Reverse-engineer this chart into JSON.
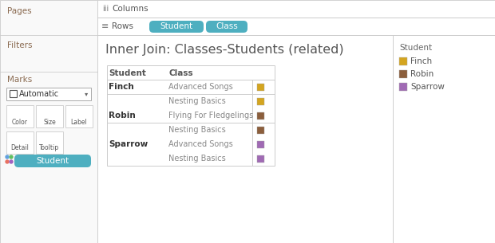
{
  "bg_color": "#f0f0f0",
  "left_panel_bg": "#f9f9f9",
  "white": "#ffffff",
  "border_color": "#cccccc",
  "text_dark": "#333333",
  "text_gray": "#888888",
  "text_blue": "#5b9bd5",
  "pill_bg": "#4eafc0",
  "pill_text": "#ffffff",
  "pages_text": "Pages",
  "filters_text": "Filters",
  "marks_text": "Marks",
  "dropdown_text": "Automatic",
  "columns_text": "Columns",
  "rows_text": "Rows",
  "pill_student": "Student",
  "pill_class": "Class",
  "title": "Inner Join: Classes-Students (related)",
  "col_headers": [
    "Student",
    "Class"
  ],
  "rows": [
    {
      "student": "Finch",
      "class": "Advanced Songs",
      "color": "#d4a520"
    },
    {
      "student": "",
      "class": "Nesting Basics",
      "color": "#d4a520"
    },
    {
      "student": "Robin",
      "class": "Flying For Fledgelings",
      "color": "#8b5e3c"
    },
    {
      "student": "",
      "class": "Nesting Basics",
      "color": "#8b5e3c"
    },
    {
      "student": "Sparrow",
      "class": "Advanced Songs",
      "color": "#a06ab4"
    },
    {
      "student": "",
      "class": "Nesting Basics",
      "color": "#a06ab4"
    }
  ],
  "legend_title": "Student",
  "legend_items": [
    {
      "label": "Finch",
      "color": "#d4a520"
    },
    {
      "label": "Robin",
      "color": "#8b5e3c"
    },
    {
      "label": "Sparrow",
      "color": "#a06ab4"
    }
  ]
}
